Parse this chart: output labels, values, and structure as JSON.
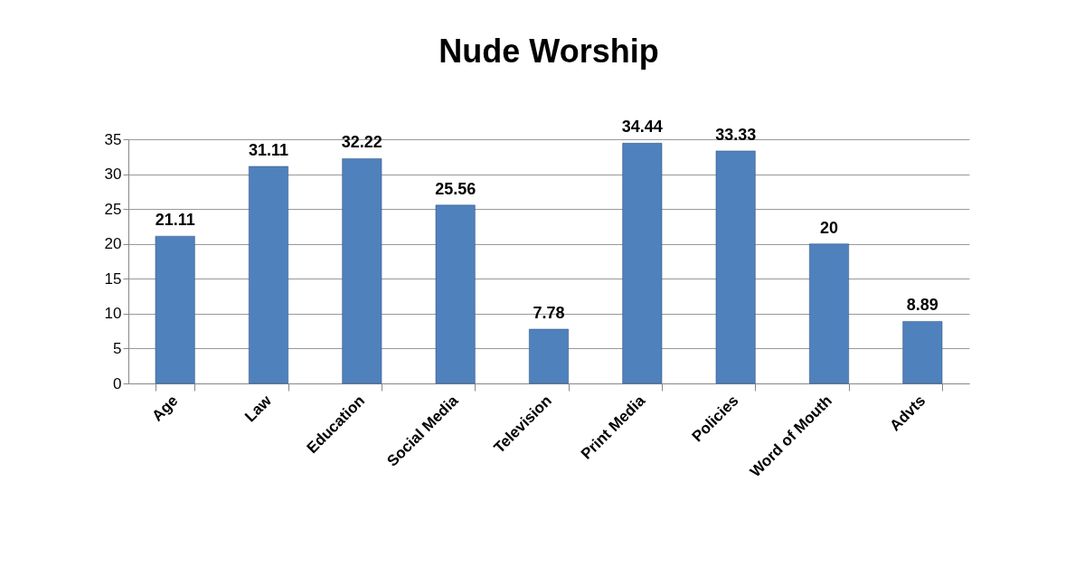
{
  "chart_data": {
    "type": "bar",
    "title": "Nude Worship",
    "categories": [
      "Age",
      "Law",
      "Education",
      "Social Media",
      "Television",
      "Print Media",
      "Policies",
      "Word of Mouth",
      "Advts"
    ],
    "values": [
      21.11,
      31.11,
      32.22,
      25.56,
      7.78,
      34.44,
      33.33,
      20,
      8.89
    ],
    "color": "#4f81bd",
    "ylim": [
      0,
      35
    ],
    "yticks": [
      0,
      5,
      10,
      15,
      20,
      25,
      30,
      35
    ],
    "grid": "y",
    "data_labels": true
  }
}
